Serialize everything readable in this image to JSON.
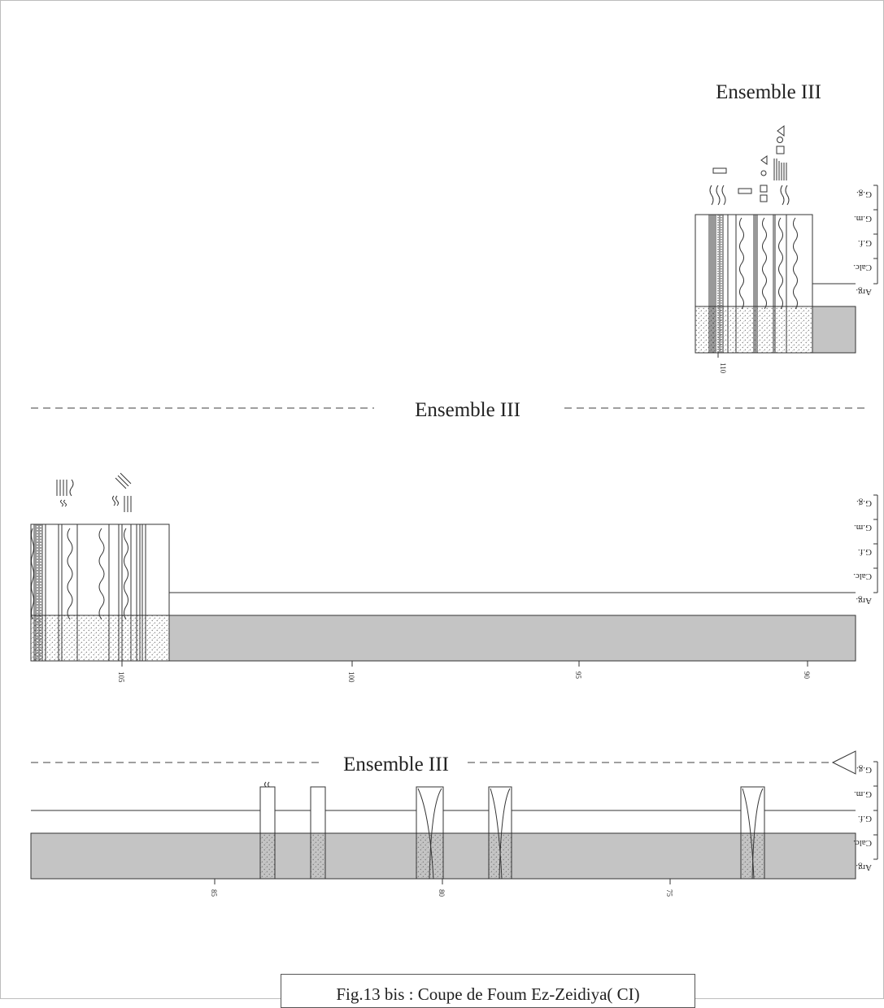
{
  "colors": {
    "line": "#333333",
    "fill_gray": "#c4c4c4",
    "dash": "#666666",
    "stipple": "#8a8a8a"
  },
  "scale_labels": [
    "G.g.",
    "G.m.",
    "G.f.",
    "Calc.",
    "Arg."
  ],
  "section1": {
    "title": "Ensemble III",
    "depth_ticks": [
      "110"
    ]
  },
  "section2": {
    "title": "Ensemble III",
    "depth_ticks": [
      "105",
      "100",
      "95",
      "90"
    ]
  },
  "section3": {
    "title": "Ensemble III",
    "depth_ticks": [
      "85",
      "80",
      "75"
    ]
  },
  "caption": "Fig.13 bis : Coupe de Foum Ez-Zeidiya( CI)"
}
